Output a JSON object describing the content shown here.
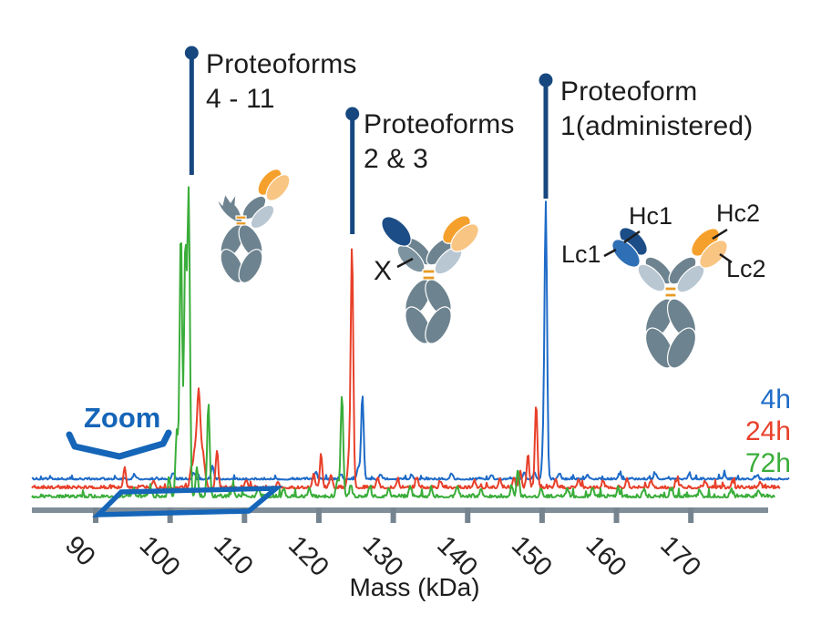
{
  "figure": {
    "zoom_label": "Zoom",
    "antibody_labels": {
      "hc1": "Hc1",
      "hc2": "Hc2",
      "lc1": "Lc1",
      "lc2": "Lc2",
      "x": "X"
    },
    "colors": {
      "pin_navy": "#17477f",
      "zoom_blue": "#1565b8",
      "axis_gray": "#7f8e99",
      "text": "#1c1c1c",
      "antibody_slate": "#6d838f",
      "antibody_lightgray": "#b9c7d2",
      "antibody_orange": "#f5a02c",
      "antibody_lightorange": "#f9c583",
      "antibody_navy": "#1d4d87",
      "antibody_midblue": "#2e6fb5"
    }
  },
  "chart_data": {
    "type": "line",
    "title": "",
    "xlabel": "Mass (kDa)",
    "ylabel": "",
    "x_ticks": [
      90,
      100,
      110,
      120,
      130,
      140,
      150,
      160,
      170
    ],
    "x_range": [
      81.4,
      183.2
    ],
    "grid": false,
    "legend_position": "right",
    "zoom_region_kda": [
      90.4,
      110.6
    ],
    "annotations": [
      {
        "line1": "Proteoforms",
        "line2": "4 - 11",
        "mass": 102.9
      },
      {
        "line1": "Proteoforms",
        "line2": "2 & 3",
        "mass": 124.5
      },
      {
        "line1": "Proteoform",
        "line2": "1(administered)",
        "mass": 150.5
      }
    ],
    "series": [
      {
        "name": "4h",
        "color": "#1e6bc8",
        "peaks": [
          {
            "m": 150.5,
            "i": 90
          },
          {
            "m": 150.15,
            "i": 10
          },
          {
            "m": 125.85,
            "i": 28
          },
          {
            "m": 125.3,
            "i": 4
          },
          {
            "m": 105.7,
            "i": 4.5
          },
          {
            "m": 103.2,
            "i": 2
          },
          {
            "m": 95.2,
            "i": 1.6
          },
          {
            "m": 100.4,
            "i": 2
          },
          {
            "m": 119.6,
            "i": 2.2
          },
          {
            "m": 123.0,
            "i": 1.8
          },
          {
            "m": 128.3,
            "i": 1.6
          },
          {
            "m": 132.5,
            "i": 1.5
          },
          {
            "m": 137.8,
            "i": 1.8
          },
          {
            "m": 143.2,
            "i": 1.5
          },
          {
            "m": 147.6,
            "i": 2.4
          },
          {
            "m": 149.0,
            "i": 2.0
          },
          {
            "m": 152.3,
            "i": 2.0
          },
          {
            "m": 156.1,
            "i": 1.6
          },
          {
            "m": 160.4,
            "i": 1.7
          },
          {
            "m": 165.2,
            "i": 1.6
          },
          {
            "m": 169.8,
            "i": 1.5
          },
          {
            "m": 174.5,
            "i": 1.6
          },
          {
            "m": 178.9,
            "i": 1.4
          }
        ]
      },
      {
        "name": "24h",
        "color": "#e8402a",
        "peaks": [
          {
            "m": 124.45,
            "i": 81
          },
          {
            "m": 124.0,
            "i": 9
          },
          {
            "m": 103.85,
            "i": 26,
            "w": 0.2
          },
          {
            "m": 103.4,
            "i": 13,
            "w": 0.3
          },
          {
            "m": 104.35,
            "i": 12,
            "w": 0.3
          },
          {
            "m": 106.3,
            "i": 12.5
          },
          {
            "m": 102.8,
            "i": 5
          },
          {
            "m": 149.2,
            "i": 28
          },
          {
            "m": 148.1,
            "i": 11
          },
          {
            "m": 147.1,
            "i": 5
          },
          {
            "m": 93.9,
            "i": 7
          },
          {
            "m": 120.3,
            "i": 11
          },
          {
            "m": 119.3,
            "i": 5
          },
          {
            "m": 121.6,
            "i": 4
          },
          {
            "m": 97.8,
            "i": 2.5
          },
          {
            "m": 110.2,
            "i": 2.5
          },
          {
            "m": 114.5,
            "i": 2.2
          },
          {
            "m": 127.9,
            "i": 3.5
          },
          {
            "m": 130.6,
            "i": 2.8
          },
          {
            "m": 133.2,
            "i": 3
          },
          {
            "m": 136.4,
            "i": 2.2
          },
          {
            "m": 140.9,
            "i": 2.6
          },
          {
            "m": 144.3,
            "i": 2.6
          },
          {
            "m": 146.2,
            "i": 3.4
          },
          {
            "m": 151.8,
            "i": 2.6
          },
          {
            "m": 154.9,
            "i": 3
          },
          {
            "m": 158.2,
            "i": 2.2
          },
          {
            "m": 161.4,
            "i": 2.6
          },
          {
            "m": 164.6,
            "i": 2.2
          },
          {
            "m": 168.1,
            "i": 2.6
          },
          {
            "m": 171.9,
            "i": 2.2
          },
          {
            "m": 175.6,
            "i": 2.2
          },
          {
            "m": 179.3,
            "i": 2
          }
        ]
      },
      {
        "name": "72h",
        "color": "#3aad3a",
        "peaks": [
          {
            "m": 102.5,
            "i": 100
          },
          {
            "m": 101.45,
            "i": 89
          },
          {
            "m": 102.05,
            "i": 83
          },
          {
            "m": 100.9,
            "i": 22
          },
          {
            "m": 105.15,
            "i": 31
          },
          {
            "m": 103.6,
            "i": 10
          },
          {
            "m": 99.9,
            "i": 6
          },
          {
            "m": 123.1,
            "i": 34
          },
          {
            "m": 122.5,
            "i": 6
          },
          {
            "m": 124.3,
            "i": 4
          },
          {
            "m": 146.75,
            "i": 9
          },
          {
            "m": 145.9,
            "i": 3.5
          },
          {
            "m": 95.1,
            "i": 2.6
          },
          {
            "m": 97.3,
            "i": 2.4
          },
          {
            "m": 108.4,
            "i": 3
          },
          {
            "m": 111.9,
            "i": 3.2
          },
          {
            "m": 115.3,
            "i": 2.6
          },
          {
            "m": 118.7,
            "i": 3
          },
          {
            "m": 126.8,
            "i": 3.4
          },
          {
            "m": 129.4,
            "i": 3
          },
          {
            "m": 132.3,
            "i": 3.2
          },
          {
            "m": 135.1,
            "i": 2.8
          },
          {
            "m": 138.6,
            "i": 3.4
          },
          {
            "m": 141.8,
            "i": 2.8
          },
          {
            "m": 149.9,
            "i": 2.8
          },
          {
            "m": 153.4,
            "i": 3
          },
          {
            "m": 156.8,
            "i": 3.2
          },
          {
            "m": 160.2,
            "i": 2.8
          },
          {
            "m": 163.7,
            "i": 2.6
          },
          {
            "m": 167.3,
            "i": 2.8
          },
          {
            "m": 171.2,
            "i": 2.4
          },
          {
            "m": 175.4,
            "i": 2.4
          },
          {
            "m": 179.1,
            "i": 2.2
          }
        ]
      }
    ]
  }
}
